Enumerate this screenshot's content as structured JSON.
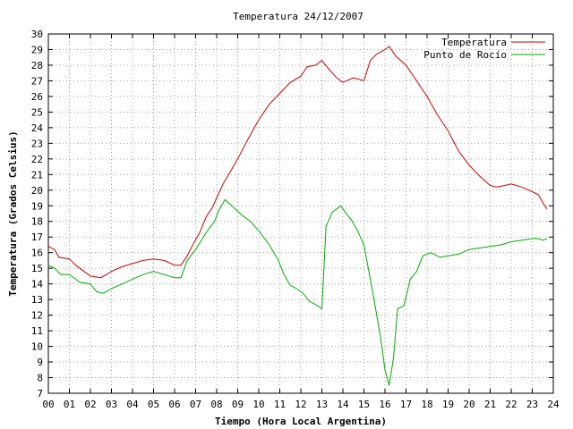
{
  "chart_data": {
    "type": "line",
    "title": "Temperatura 24/12/2007",
    "xlabel": "Tiempo (Hora Local Argentina)",
    "ylabel": "Temperatura (Grados Celsius)",
    "xlim": [
      0,
      24
    ],
    "ylim": [
      7,
      30
    ],
    "x_ticks": [
      "00",
      "01",
      "02",
      "03",
      "04",
      "05",
      "06",
      "07",
      "08",
      "09",
      "10",
      "11",
      "12",
      "13",
      "14",
      "15",
      "16",
      "17",
      "18",
      "19",
      "20",
      "21",
      "22",
      "23",
      "24"
    ],
    "y_ticks": [
      "7",
      "8",
      "9",
      "10",
      "11",
      "12",
      "13",
      "14",
      "15",
      "16",
      "17",
      "18",
      "19",
      "20",
      "21",
      "22",
      "23",
      "24",
      "25",
      "26",
      "27",
      "28",
      "29",
      "30"
    ],
    "grid": true,
    "legend_position": "top-right",
    "series": [
      {
        "name": "Temperatura",
        "color": "#cc0000",
        "x": [
          0.0,
          0.3,
          0.5,
          1.0,
          1.3,
          1.7,
          2.0,
          2.5,
          3.0,
          3.5,
          4.0,
          4.5,
          5.0,
          5.5,
          6.0,
          6.3,
          6.6,
          6.9,
          7.2,
          7.5,
          7.8,
          8.0,
          8.3,
          8.7,
          9.0,
          9.5,
          10.0,
          10.5,
          11.0,
          11.5,
          12.0,
          12.3,
          12.7,
          13.0,
          13.3,
          13.7,
          14.0,
          14.5,
          15.0,
          15.3,
          15.6,
          16.0,
          16.2,
          16.5,
          17.0,
          17.5,
          18.0,
          18.5,
          19.0,
          19.5,
          20.0,
          20.5,
          21.0,
          21.3,
          21.7,
          22.0,
          22.5,
          23.0,
          23.3,
          23.5,
          23.7
        ],
        "values": [
          16.4,
          16.2,
          15.7,
          15.6,
          15.2,
          14.8,
          14.5,
          14.4,
          14.8,
          15.1,
          15.3,
          15.5,
          15.6,
          15.5,
          15.2,
          15.2,
          15.8,
          16.6,
          17.3,
          18.3,
          18.9,
          19.5,
          20.4,
          21.3,
          22.0,
          23.3,
          24.5,
          25.5,
          26.2,
          26.9,
          27.3,
          27.9,
          28.0,
          28.3,
          27.8,
          27.2,
          26.9,
          27.2,
          27.0,
          28.3,
          28.7,
          29.0,
          29.2,
          28.6,
          28.0,
          27.0,
          26.0,
          24.8,
          23.8,
          22.5,
          21.6,
          20.9,
          20.3,
          20.2,
          20.3,
          20.4,
          20.2,
          19.9,
          19.7,
          19.2,
          18.8
        ]
      },
      {
        "name": "Punto de Rocío",
        "color": "#00aa00",
        "x": [
          0.0,
          0.3,
          0.6,
          1.0,
          1.5,
          2.0,
          2.3,
          2.6,
          3.0,
          3.5,
          4.0,
          4.5,
          5.0,
          5.5,
          6.0,
          6.3,
          6.6,
          7.0,
          7.5,
          7.9,
          8.1,
          8.4,
          8.8,
          9.2,
          9.6,
          10.0,
          10.5,
          10.9,
          11.2,
          11.5,
          11.8,
          12.1,
          12.4,
          12.8,
          13.0,
          13.2,
          13.5,
          13.9,
          14.1,
          14.4,
          14.7,
          15.0,
          15.4,
          15.8,
          16.0,
          16.2,
          16.4,
          16.6,
          16.9,
          17.2,
          17.5,
          17.8,
          18.2,
          18.6,
          19.0,
          19.5,
          20.0,
          20.5,
          21.0,
          21.5,
          22.0,
          22.5,
          23.0,
          23.3,
          23.5,
          23.7
        ],
        "values": [
          15.2,
          15.0,
          14.6,
          14.6,
          14.1,
          14.0,
          13.5,
          13.4,
          13.7,
          14.0,
          14.3,
          14.6,
          14.8,
          14.6,
          14.4,
          14.4,
          15.5,
          16.2,
          17.3,
          18.0,
          18.7,
          19.4,
          18.9,
          18.4,
          18.0,
          17.4,
          16.5,
          15.6,
          14.6,
          13.9,
          13.7,
          13.4,
          12.9,
          12.6,
          12.4,
          17.7,
          18.6,
          19.0,
          18.6,
          18.1,
          17.4,
          16.5,
          13.6,
          10.5,
          8.5,
          7.5,
          9.2,
          12.4,
          12.6,
          14.3,
          14.8,
          15.8,
          16.0,
          15.7,
          15.8,
          15.9,
          16.2,
          16.3,
          16.4,
          16.5,
          16.7,
          16.8,
          16.9,
          16.9,
          16.8,
          16.9
        ]
      }
    ]
  }
}
